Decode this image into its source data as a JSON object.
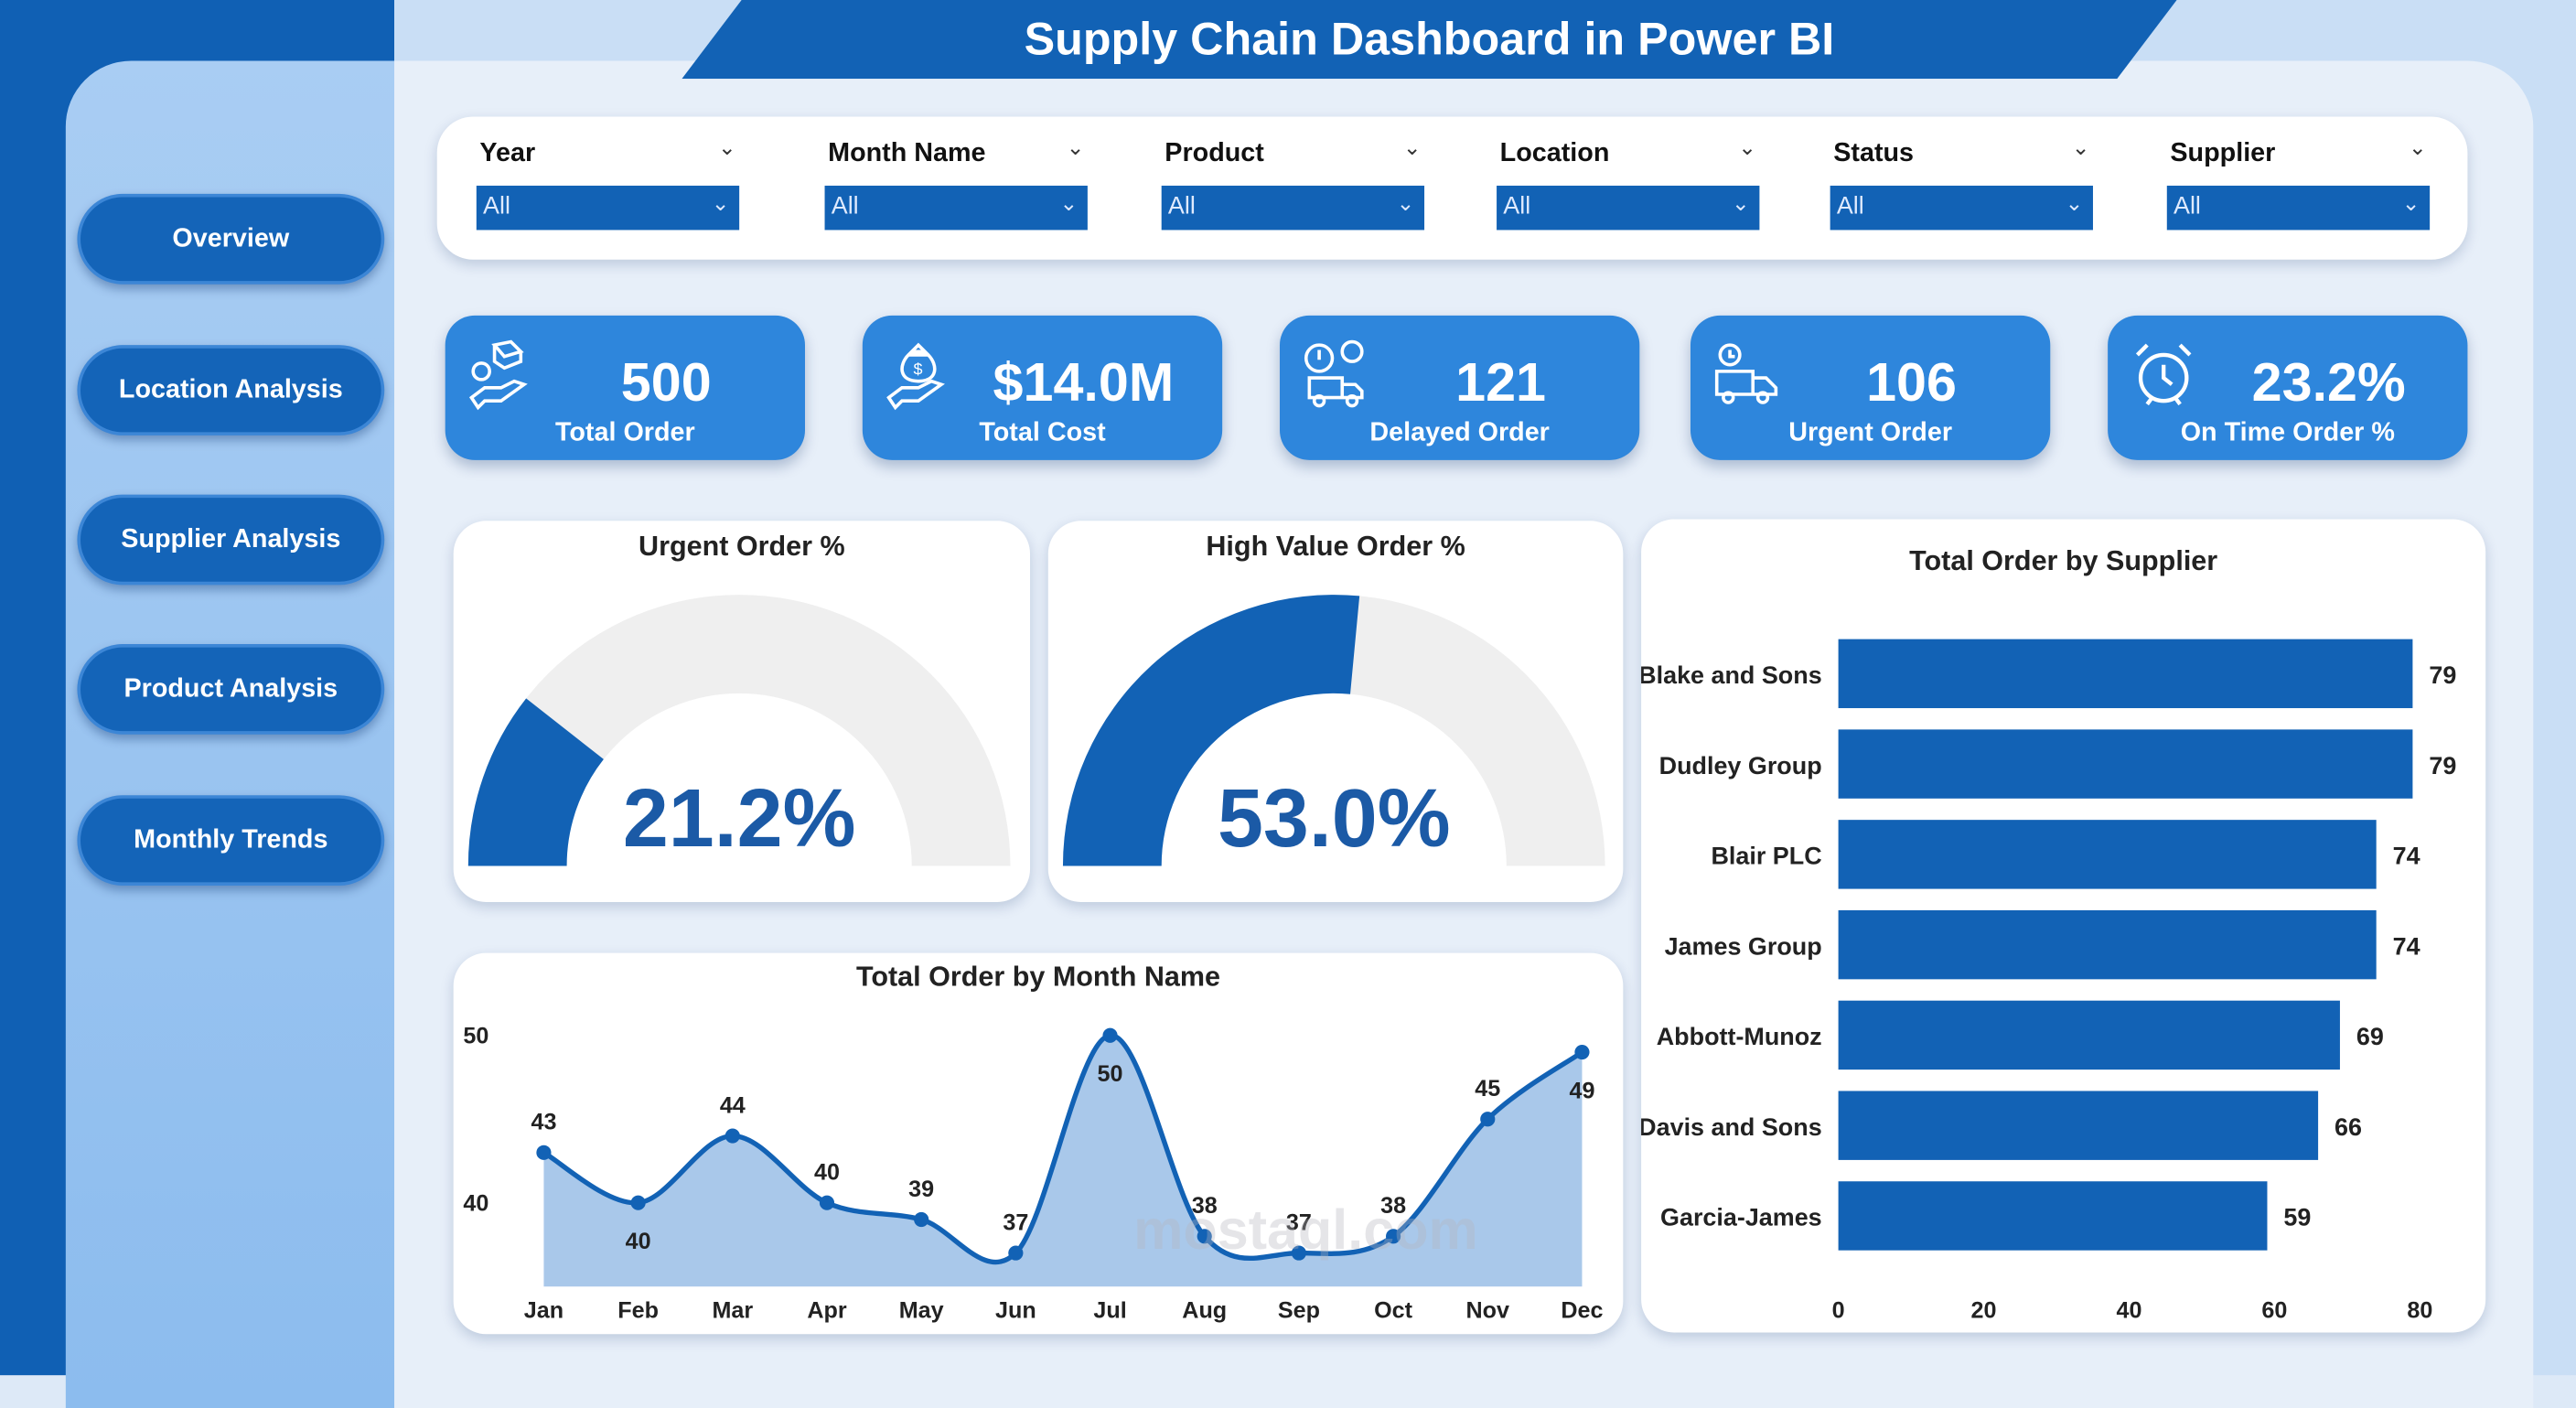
{
  "title": "Supply Chain Dashboard in Power BI",
  "nav": [
    {
      "label": "Overview"
    },
    {
      "label": "Location Analysis"
    },
    {
      "label": "Supplier Analysis"
    },
    {
      "label": "Product Analysis"
    },
    {
      "label": "Monthly Trends"
    }
  ],
  "filters": [
    {
      "label": "Year",
      "value": "All"
    },
    {
      "label": "Month Name",
      "value": "All"
    },
    {
      "label": "Product",
      "value": "All"
    },
    {
      "label": "Location",
      "value": "All"
    },
    {
      "label": "Status",
      "value": "All"
    },
    {
      "label": "Supplier",
      "value": "All"
    }
  ],
  "kpis": [
    {
      "value": "500",
      "label": "Total Order",
      "icon": "box-hand-icon"
    },
    {
      "value": "$14.0M",
      "label": "Total Cost",
      "icon": "money-bag-hand-icon"
    },
    {
      "value": "121",
      "label": "Delayed Order",
      "icon": "delivery-truck-clock-icon"
    },
    {
      "value": "106",
      "label": "Urgent Order",
      "icon": "urgent-truck-icon"
    },
    {
      "value": "23.2%",
      "label": "On Time Order %",
      "icon": "alarm-clock-icon"
    }
  ],
  "colors": {
    "primary": "#1262b5",
    "kpi": "#2e86dc",
    "gauge_track": "#efefef",
    "area": "#a9c8ea"
  },
  "watermark": "mostaql.com",
  "chart_data": [
    {
      "type": "gauge",
      "title": "Urgent Order %",
      "value": 21.2,
      "label": "21.2%",
      "range": [
        0,
        100
      ]
    },
    {
      "type": "gauge",
      "title": "High Value Order %",
      "value": 53.0,
      "label": "53.0%",
      "range": [
        0,
        100
      ]
    },
    {
      "type": "bar",
      "orientation": "horizontal",
      "title": "Total Order by Supplier",
      "categories": [
        "Blake and Sons",
        "Dudley Group",
        "Blair PLC",
        "James Group",
        "Abbott-Munoz",
        "Davis and Sons",
        "Garcia-James"
      ],
      "values": [
        79,
        79,
        74,
        74,
        69,
        66,
        59
      ],
      "xlim": [
        0,
        80
      ],
      "xticks": [
        "0",
        "20",
        "40",
        "60",
        "80"
      ]
    },
    {
      "type": "area",
      "title": "Total Order by Month Name",
      "categories": [
        "Jan",
        "Feb",
        "Mar",
        "Apr",
        "May",
        "Jun",
        "Jul",
        "Aug",
        "Sep",
        "Oct",
        "Nov",
        "Dec"
      ],
      "values": [
        43,
        40,
        44,
        40,
        39,
        37,
        50,
        38,
        37,
        38,
        45,
        49
      ],
      "yticks": [
        "40",
        "50"
      ],
      "ylim": [
        35,
        51
      ]
    }
  ]
}
